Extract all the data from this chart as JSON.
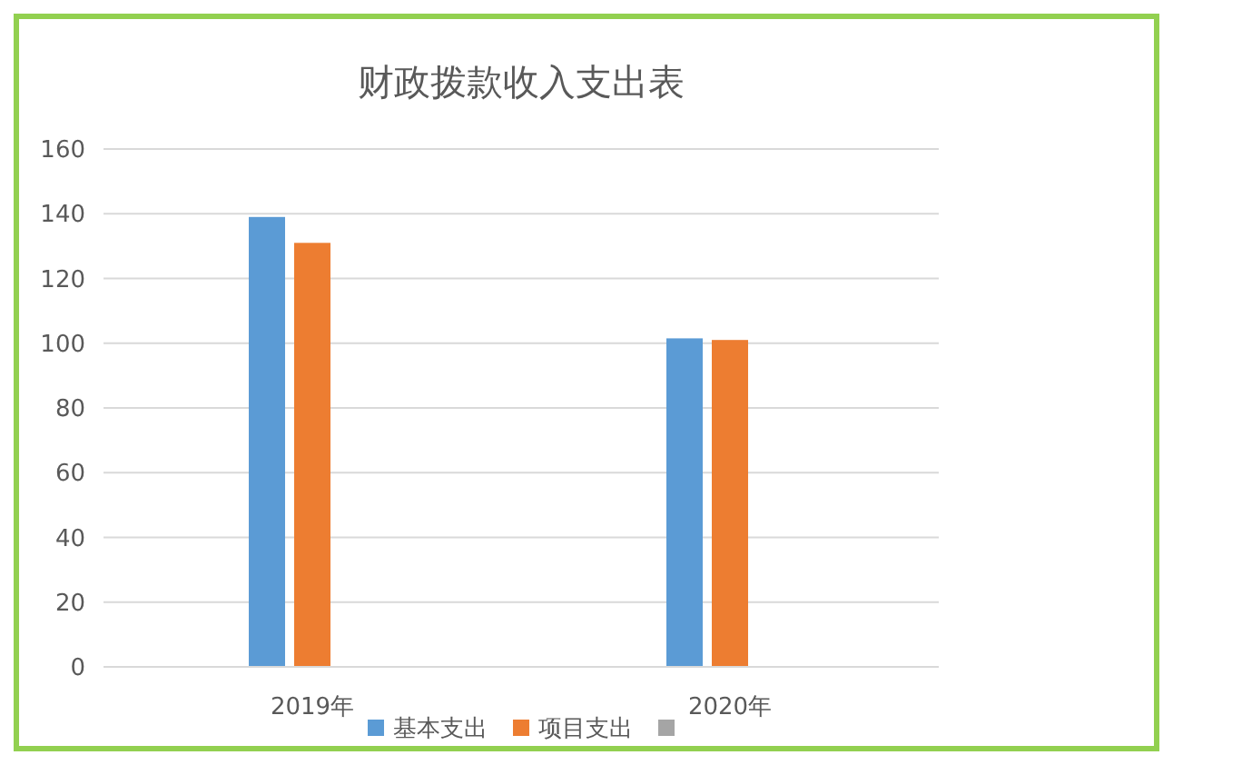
{
  "chart_data": {
    "type": "bar",
    "title": "财政拨款收入支出表",
    "categories": [
      "2019年",
      "2020年"
    ],
    "series": [
      {
        "name": "基本支出",
        "color": "#5b9bd5",
        "values": [
          139,
          101.5
        ]
      },
      {
        "name": "项目支出",
        "color": "#ed7d31",
        "values": [
          131,
          101
        ]
      },
      {
        "color": "#a5a5a5",
        "values": [
          null,
          null
        ]
      }
    ],
    "ylim": [
      0,
      160
    ],
    "yticks": [
      0,
      20,
      40,
      60,
      80,
      100,
      120,
      140,
      160
    ],
    "grid": "y",
    "legend": "bottom"
  }
}
